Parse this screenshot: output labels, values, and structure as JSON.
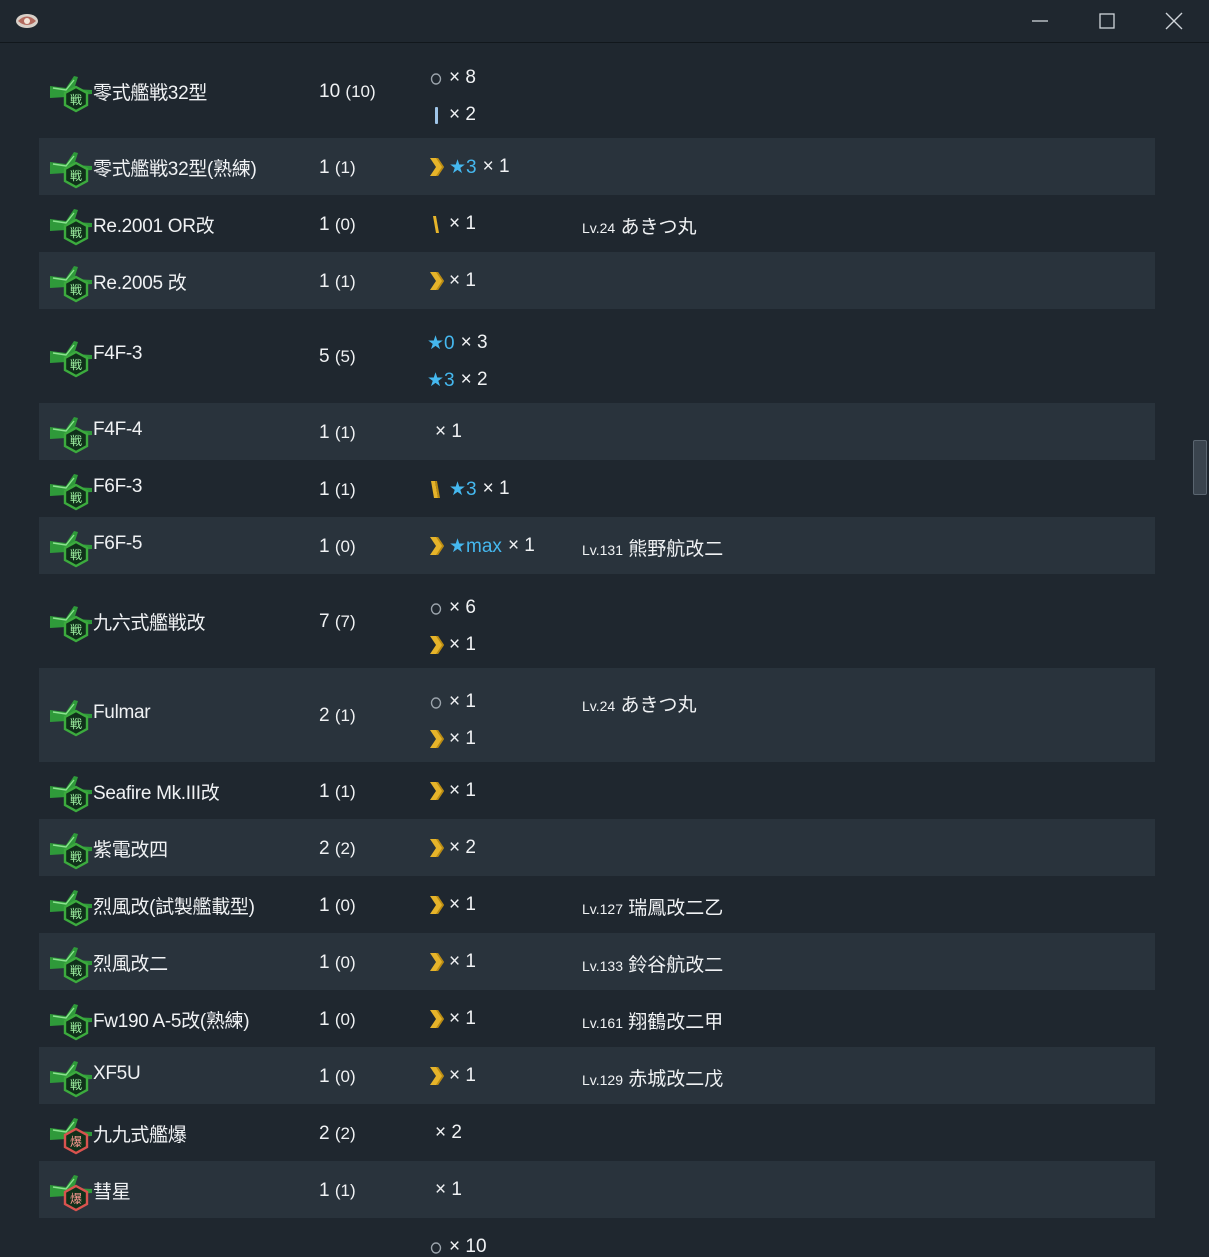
{
  "window": {
    "icon": "sakura-logo-icon",
    "controls": [
      "minimize-icon",
      "maximize-icon",
      "close-icon"
    ]
  },
  "colors": {
    "background": "#1f272f",
    "alt_row": "#29333c",
    "star": "#45b8ef",
    "fighter_badge": "#3cab3e",
    "bomber_badge": "#d9534f",
    "proficiency_gold": "#e6b42a",
    "proficiency_blue": "#9fc5e8"
  },
  "rows": [
    {
      "name": "零式艦戦32型",
      "count": "10",
      "owned": "(10)",
      "type": "fighter",
      "alt": false,
      "dist": [
        {
          "prof": "none",
          "star": "",
          "mult": "× 8"
        },
        {
          "prof": "blue1",
          "star": "",
          "mult": "× 2"
        }
      ],
      "ship": null
    },
    {
      "name": "零式艦戦32型(熟練)",
      "count": "1",
      "owned": "(1)",
      "type": "fighter",
      "alt": true,
      "dist": [
        {
          "prof": "chevron",
          "star": "★3",
          "mult": "× 1"
        }
      ],
      "ship": null
    },
    {
      "name": "Re.2001 OR改",
      "count": "1",
      "owned": "(0)",
      "type": "fighter",
      "alt": false,
      "dist": [
        {
          "prof": "gold1",
          "star": "",
          "mult": "× 1"
        }
      ],
      "ship": {
        "lv": "Lv.24",
        "name": "あきつ丸"
      }
    },
    {
      "name": "Re.2005 改",
      "count": "1",
      "owned": "(1)",
      "type": "fighter",
      "alt": true,
      "dist": [
        {
          "prof": "chevron",
          "star": "",
          "mult": "× 1"
        }
      ],
      "ship": null
    },
    {
      "name": "F4F-3",
      "count": "5",
      "owned": "(5)",
      "type": "fighter",
      "alt": false,
      "dist": [
        {
          "prof": "star-only",
          "star": "★0",
          "mult": "× 3"
        },
        {
          "prof": "star-only",
          "star": "★3",
          "mult": "× 2"
        }
      ],
      "ship": null
    },
    {
      "name": "F4F-4",
      "count": "1",
      "owned": "(1)",
      "type": "fighter",
      "alt": true,
      "dist": [
        {
          "prof": "empty",
          "star": "",
          "mult": "× 1"
        }
      ],
      "ship": null
    },
    {
      "name": "F6F-3",
      "count": "1",
      "owned": "(1)",
      "type": "fighter",
      "alt": false,
      "dist": [
        {
          "prof": "gold2",
          "star": "★3",
          "mult": "× 1"
        }
      ],
      "ship": null
    },
    {
      "name": "F6F-5",
      "count": "1",
      "owned": "(0)",
      "type": "fighter",
      "alt": true,
      "dist": [
        {
          "prof": "chevron",
          "star": "★max",
          "mult": "× 1"
        }
      ],
      "ship": {
        "lv": "Lv.131",
        "name": "熊野航改二"
      }
    },
    {
      "name": "九六式艦戦改",
      "count": "7",
      "owned": "(7)",
      "type": "fighter",
      "alt": false,
      "dist": [
        {
          "prof": "none",
          "star": "",
          "mult": "× 6"
        },
        {
          "prof": "chevron",
          "star": "",
          "mult": "× 1"
        }
      ],
      "ship": null
    },
    {
      "name": "Fulmar",
      "count": "2",
      "owned": "(1)",
      "type": "fighter",
      "alt": true,
      "dist": [
        {
          "prof": "none",
          "star": "",
          "mult": "× 1"
        },
        {
          "prof": "chevron",
          "star": "",
          "mult": "× 1"
        }
      ],
      "ship": {
        "lv": "Lv.24",
        "name": "あきつ丸"
      }
    },
    {
      "name": "Seafire Mk.III改",
      "count": "1",
      "owned": "(1)",
      "type": "fighter",
      "alt": false,
      "dist": [
        {
          "prof": "chevron",
          "star": "",
          "mult": "× 1"
        }
      ],
      "ship": null
    },
    {
      "name": "紫電改四",
      "count": "2",
      "owned": "(2)",
      "type": "fighter",
      "alt": true,
      "dist": [
        {
          "prof": "chevron",
          "star": "",
          "mult": "× 2"
        }
      ],
      "ship": null
    },
    {
      "name": "烈風改(試製艦載型)",
      "count": "1",
      "owned": "(0)",
      "type": "fighter",
      "alt": false,
      "dist": [
        {
          "prof": "chevron",
          "star": "",
          "mult": "× 1"
        }
      ],
      "ship": {
        "lv": "Lv.127",
        "name": "瑞鳳改二乙"
      }
    },
    {
      "name": "烈風改二",
      "count": "1",
      "owned": "(0)",
      "type": "fighter",
      "alt": true,
      "dist": [
        {
          "prof": "chevron",
          "star": "",
          "mult": "× 1"
        }
      ],
      "ship": {
        "lv": "Lv.133",
        "name": "鈴谷航改二"
      }
    },
    {
      "name": "Fw190 A-5改(熟練)",
      "count": "1",
      "owned": "(0)",
      "type": "fighter",
      "alt": false,
      "dist": [
        {
          "prof": "chevron",
          "star": "",
          "mult": "× 1"
        }
      ],
      "ship": {
        "lv": "Lv.161",
        "name": "翔鶴改二甲"
      }
    },
    {
      "name": "XF5U",
      "count": "1",
      "owned": "(0)",
      "type": "fighter",
      "alt": true,
      "dist": [
        {
          "prof": "chevron",
          "star": "",
          "mult": "× 1"
        }
      ],
      "ship": {
        "lv": "Lv.129",
        "name": "赤城改二戊"
      }
    },
    {
      "name": "九九式艦爆",
      "count": "2",
      "owned": "(2)",
      "type": "bomber",
      "alt": false,
      "dist": [
        {
          "prof": "empty",
          "star": "",
          "mult": "× 2"
        }
      ],
      "ship": null
    },
    {
      "name": "彗星",
      "count": "1",
      "owned": "(1)",
      "type": "bomber",
      "alt": true,
      "dist": [
        {
          "prof": "empty",
          "star": "",
          "mult": "× 1"
        }
      ],
      "ship": null
    },
    {
      "name": "",
      "count": "",
      "owned": "",
      "type": "none",
      "alt": false,
      "dist": [
        {
          "prof": "none",
          "star": "",
          "mult": "× 10"
        }
      ],
      "ship": null
    }
  ]
}
